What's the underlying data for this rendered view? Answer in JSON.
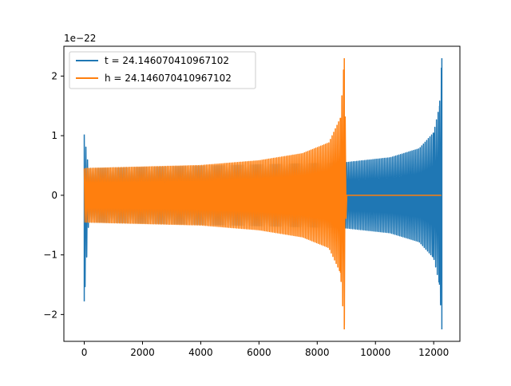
{
  "chart_data": {
    "type": "line",
    "title": "",
    "xlabel": "",
    "ylabel": "",
    "offset_text": "1e−22",
    "xlim": [
      -700,
      12900
    ],
    "ylim": [
      -2.45,
      2.5
    ],
    "x_ticks": [
      0,
      2000,
      4000,
      6000,
      8000,
      10000,
      12000
    ],
    "x_tick_labels": [
      "0",
      "2000",
      "4000",
      "6000",
      "8000",
      "10000",
      "12000"
    ],
    "y_ticks": [
      -2,
      -1,
      0,
      1,
      2
    ],
    "y_tick_labels": [
      "−2",
      "−1",
      "0",
      "1",
      "2"
    ],
    "grid": false,
    "legend_position": "top-left",
    "series": [
      {
        "name": "t = 24.146070410967102",
        "color": "#1f77b4",
        "envelope": [
          {
            "x": 0,
            "upper": 1.02,
            "lower": -1.78
          },
          {
            "x": 150,
            "upper": 0.45,
            "lower": -0.45
          },
          {
            "x": 9000,
            "upper": 0.55,
            "lower": -0.55
          },
          {
            "x": 10500,
            "upper": 0.63,
            "lower": -0.63
          },
          {
            "x": 11500,
            "upper": 0.78,
            "lower": -0.78
          },
          {
            "x": 12000,
            "upper": 1.05,
            "lower": -1.05
          },
          {
            "x": 12200,
            "upper": 1.5,
            "lower": -1.5
          },
          {
            "x": 12280,
            "upper": 2.3,
            "lower": -2.25
          }
        ]
      },
      {
        "name": "h = 24.146070410967102",
        "color": "#ff7f0e",
        "envelope": [
          {
            "x": 0,
            "upper": 0.45,
            "lower": -0.45
          },
          {
            "x": 4000,
            "upper": 0.5,
            "lower": -0.5
          },
          {
            "x": 6000,
            "upper": 0.58,
            "lower": -0.58
          },
          {
            "x": 7500,
            "upper": 0.7,
            "lower": -0.7
          },
          {
            "x": 8400,
            "upper": 0.88,
            "lower": -0.88
          },
          {
            "x": 8800,
            "upper": 1.3,
            "lower": -1.3
          },
          {
            "x": 8930,
            "upper": 2.3,
            "lower": -2.25
          },
          {
            "x": 9000,
            "upper": 0,
            "lower": 0
          },
          {
            "x": 12280,
            "upper": 0,
            "lower": 0
          }
        ]
      }
    ]
  }
}
